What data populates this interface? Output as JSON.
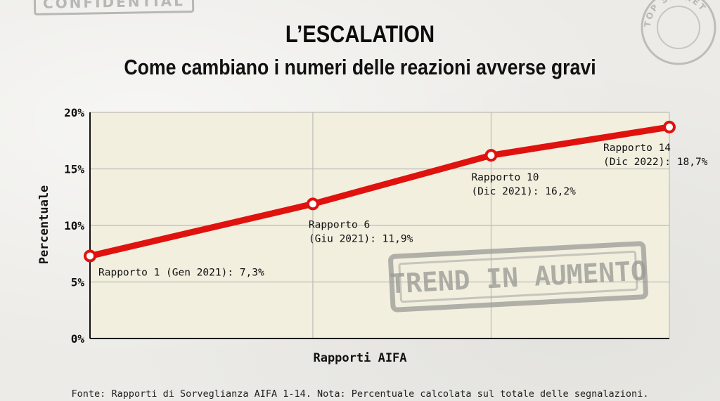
{
  "header": {
    "stamp_text": "CONFIDENTIAL",
    "seal_text": "TOP SECRET"
  },
  "footer": {
    "source_note": "Fonte: Rapporti di Sorveglianza AIFA 1-14. Nota: Percentuale calcolata sul totale delle segnalazioni."
  },
  "stamp_trend": {
    "text": "TREND IN AUMENTO"
  },
  "colors": {
    "line": "#e0120e",
    "plot_bg": "#f2efdf",
    "grid": "#bdbdb6",
    "axis": "#111111",
    "stamp": "#9a9a96"
  },
  "chart_data": {
    "type": "line",
    "title": "L’ESCALATION",
    "subtitle": "Come cambiano i numeri delle reazioni avverse gravi",
    "xlabel": "Rapporti AIFA",
    "ylabel": "Percentuale",
    "ylim": [
      0,
      20
    ],
    "yticks": [
      0,
      5,
      10,
      15,
      20
    ],
    "ytick_labels": [
      "0%",
      "5%",
      "10%",
      "15%",
      "20%"
    ],
    "xlim": [
      1,
      14
    ],
    "x_grid": [
      1,
      6,
      10,
      14
    ],
    "grid": true,
    "series": [
      {
        "x": [
          1,
          6,
          10,
          14
        ],
        "values": [
          7.3,
          11.9,
          16.2,
          18.7
        ],
        "labels": [
          [
            "Rapporto 1 (Gen 2021): 7,3%"
          ],
          [
            "Rapporto 6",
            "(Giu 2021): 11,9%"
          ],
          [
            "Rapporto 10",
            "(Dic 2021): 16,2%"
          ],
          [
            "Rapporto 14",
            "(Dic 2022): 18,7%"
          ]
        ]
      }
    ]
  }
}
